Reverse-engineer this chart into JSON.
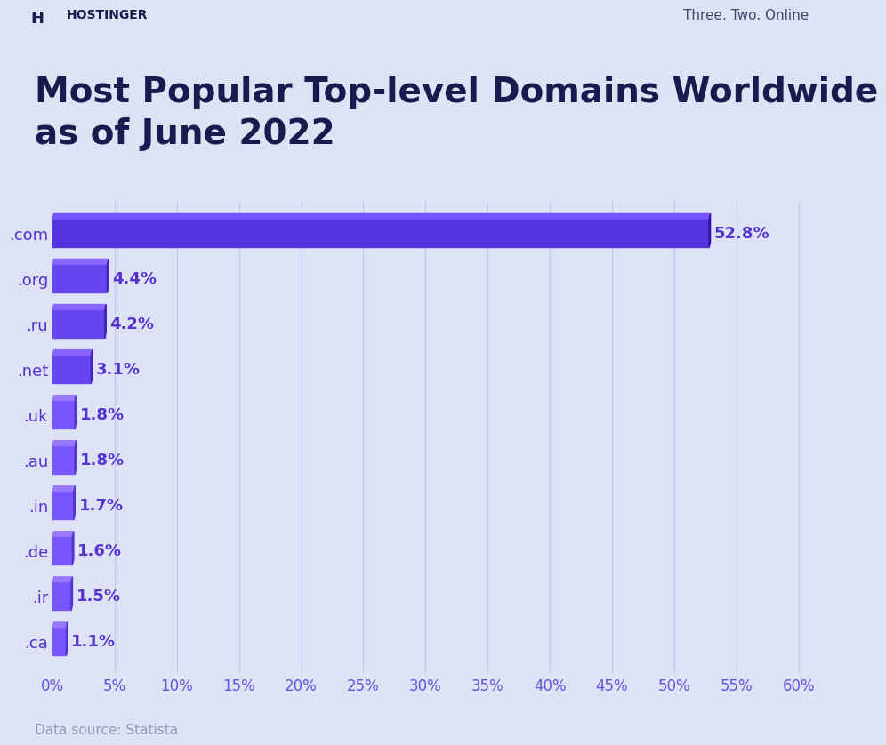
{
  "title": "Most Popular Top-level Domains Worldwide\nas of June 2022",
  "categories": [
    ".com",
    ".org",
    ".ru",
    ".net",
    ".uk",
    ".au",
    ".in",
    ".de",
    ".ir",
    ".ca"
  ],
  "values": [
    52.8,
    4.4,
    4.2,
    3.1,
    1.8,
    1.8,
    1.7,
    1.6,
    1.5,
    1.1
  ],
  "background_color": "#dde3f5",
  "title_color": "#1a1a4e",
  "label_color": "#5533cc",
  "tick_label_color": "#6655dd",
  "data_source_color": "#9999bb",
  "hostinger_color": "#1a1a4e",
  "tagline_color": "#444466",
  "grid_color": "#c0c8ee",
  "xlabel_ticks": [
    0,
    5,
    10,
    15,
    20,
    25,
    30,
    35,
    40,
    45,
    50,
    55,
    60
  ],
  "xlabel_labels": [
    "0%",
    "5%",
    "10%",
    "15%",
    "20%",
    "25%",
    "30%",
    "35%",
    "40%",
    "45%",
    "50%",
    "55%",
    "60%"
  ],
  "xlim": [
    0,
    63
  ],
  "title_fontsize": 28,
  "label_fontsize": 13,
  "tick_fontsize": 12,
  "data_source_text": "Data source: Statista",
  "hostinger_text": "HOSTINGER",
  "tagline_text": "Three. Two. Online",
  "bar_face_colors": [
    "#5533dd",
    "#6644ee",
    "#6644ee",
    "#6644ee",
    "#7755ff",
    "#7755ff",
    "#7755ff",
    "#7755ff",
    "#7755ff",
    "#7755ff"
  ],
  "bar_top_colors": [
    "#7755ff",
    "#8866ff",
    "#8866ff",
    "#8866ff",
    "#9977ff",
    "#9977ff",
    "#9977ff",
    "#9977ff",
    "#9977ff",
    "#9977ff"
  ],
  "bar_side_colors": [
    "#3311aa",
    "#4422bb",
    "#4422bb",
    "#4422bb",
    "#5533cc",
    "#5533cc",
    "#5533cc",
    "#5533cc",
    "#5533cc",
    "#5533cc"
  ]
}
